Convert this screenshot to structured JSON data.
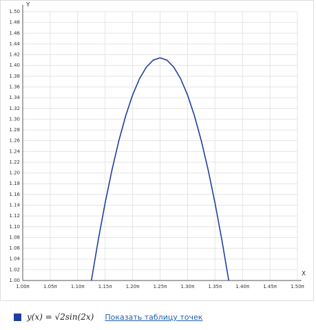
{
  "chart_data": {
    "type": "line",
    "x_label": "X",
    "y_label": "Y",
    "x": [
      1.125,
      1.1375,
      1.15,
      1.1625,
      1.175,
      1.1875,
      1.2,
      1.2125,
      1.225,
      1.2375,
      1.25,
      1.2625,
      1.275,
      1.2875,
      1.3,
      1.3125,
      1.325,
      1.3375,
      1.35,
      1.3625,
      1.375
    ],
    "series": [
      {
        "name": "y(x) = √2sin(2x)",
        "color": "#1f3f9f",
        "values": [
          1.0,
          1.0754,
          1.1441,
          1.2058,
          1.2601,
          1.3066,
          1.345,
          1.3752,
          1.3968,
          1.4099,
          1.4142,
          1.4099,
          1.3968,
          1.3752,
          1.345,
          1.3066,
          1.2601,
          1.2058,
          1.1441,
          1.0754,
          1.0
        ]
      }
    ],
    "xlim": [
      1.0,
      1.5
    ],
    "ylim": [
      1.0,
      1.5
    ],
    "xticks": [
      {
        "value": 1.0,
        "label": "1.00π"
      },
      {
        "value": 1.05,
        "label": "1.05π"
      },
      {
        "value": 1.1,
        "label": "1.10π"
      },
      {
        "value": 1.15,
        "label": "1.15π"
      },
      {
        "value": 1.2,
        "label": "1.20π"
      },
      {
        "value": 1.25,
        "label": "1.25π"
      },
      {
        "value": 1.3,
        "label": "1.30π"
      },
      {
        "value": 1.35,
        "label": "1.35π"
      },
      {
        "value": 1.4,
        "label": "1.40π"
      },
      {
        "value": 1.45,
        "label": "1.45π"
      },
      {
        "value": 1.5,
        "label": "1.50π"
      }
    ],
    "yticks": [
      {
        "value": 1.0,
        "label": "1.00"
      },
      {
        "value": 1.02,
        "label": "1.02"
      },
      {
        "value": 1.04,
        "label": "1.04"
      },
      {
        "value": 1.06,
        "label": "1.06"
      },
      {
        "value": 1.08,
        "label": "1.08"
      },
      {
        "value": 1.1,
        "label": "1.10"
      },
      {
        "value": 1.12,
        "label": "1.12"
      },
      {
        "value": 1.14,
        "label": "1.14"
      },
      {
        "value": 1.16,
        "label": "1.16"
      },
      {
        "value": 1.18,
        "label": "1.18"
      },
      {
        "value": 1.2,
        "label": "1.20"
      },
      {
        "value": 1.22,
        "label": "1.22"
      },
      {
        "value": 1.24,
        "label": "1.24"
      },
      {
        "value": 1.26,
        "label": "1.26"
      },
      {
        "value": 1.28,
        "label": "1.28"
      },
      {
        "value": 1.3,
        "label": "1.30"
      },
      {
        "value": 1.32,
        "label": "1.32"
      },
      {
        "value": 1.34,
        "label": "1.34"
      },
      {
        "value": 1.36,
        "label": "1.36"
      },
      {
        "value": 1.38,
        "label": "1.38"
      },
      {
        "value": 1.4,
        "label": "1.40"
      },
      {
        "value": 1.42,
        "label": "1.42"
      },
      {
        "value": 1.44,
        "label": "1.44"
      },
      {
        "value": 1.46,
        "label": "1.46"
      },
      {
        "value": 1.48,
        "label": "1.48"
      },
      {
        "value": 1.5,
        "label": "1.50"
      }
    ],
    "grid": true
  },
  "link": "Показать таблицу точек"
}
